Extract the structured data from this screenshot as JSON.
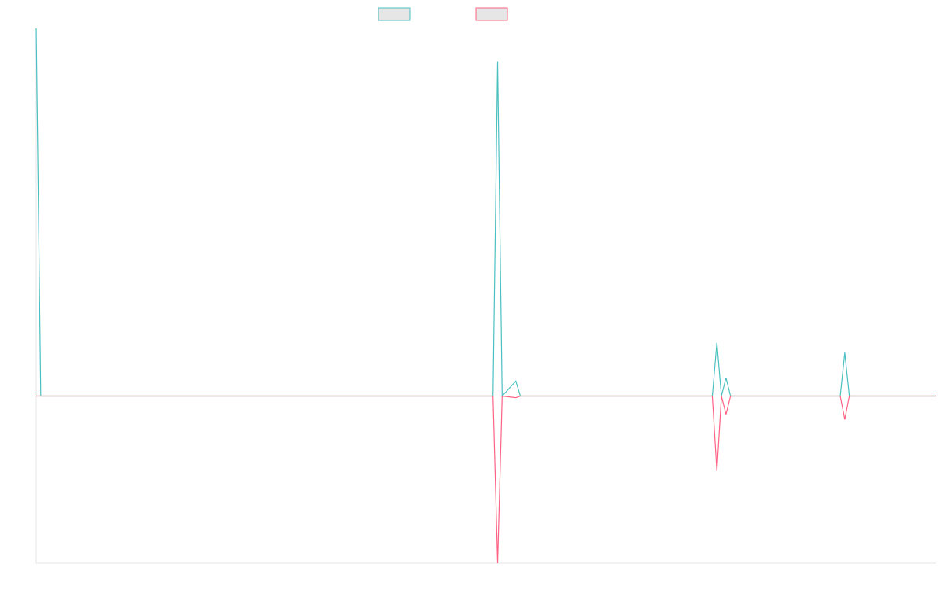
{
  "chart_data": {
    "type": "line",
    "title": "",
    "xlabel": "",
    "ylabel": "",
    "ylim": [
      -1.0,
      2.2
    ],
    "legend": {
      "placement": "top-center",
      "entries": [
        {
          "name": "",
          "color": "#4bc0c0"
        },
        {
          "name": "",
          "color": "#ff6384"
        }
      ]
    },
    "series": [
      {
        "name": "",
        "color": "#4bc0c0",
        "points": [
          [
            0,
            2.2
          ],
          [
            1,
            0
          ],
          [
            100,
            0
          ],
          [
            101,
            2.0
          ],
          [
            102,
            0
          ],
          [
            105,
            0.09
          ],
          [
            106,
            0
          ],
          [
            148,
            0
          ],
          [
            149,
            0.32
          ],
          [
            150,
            0
          ],
          [
            151,
            0.11
          ],
          [
            152,
            0
          ],
          [
            176,
            0
          ],
          [
            177,
            0.26
          ],
          [
            178,
            0
          ],
          [
            197,
            0
          ]
        ]
      },
      {
        "name": "",
        "color": "#ff6384",
        "points": [
          [
            0,
            0
          ],
          [
            100,
            0
          ],
          [
            101,
            -1.0
          ],
          [
            102,
            0
          ],
          [
            105,
            -0.01
          ],
          [
            106,
            0
          ],
          [
            148,
            0
          ],
          [
            149,
            -0.45
          ],
          [
            150,
            0
          ],
          [
            151,
            -0.11
          ],
          [
            152,
            0
          ],
          [
            176,
            0
          ],
          [
            177,
            -0.14
          ],
          [
            178,
            0
          ],
          [
            197,
            0
          ]
        ]
      }
    ],
    "xlim": [
      0,
      197
    ],
    "grid": false
  }
}
